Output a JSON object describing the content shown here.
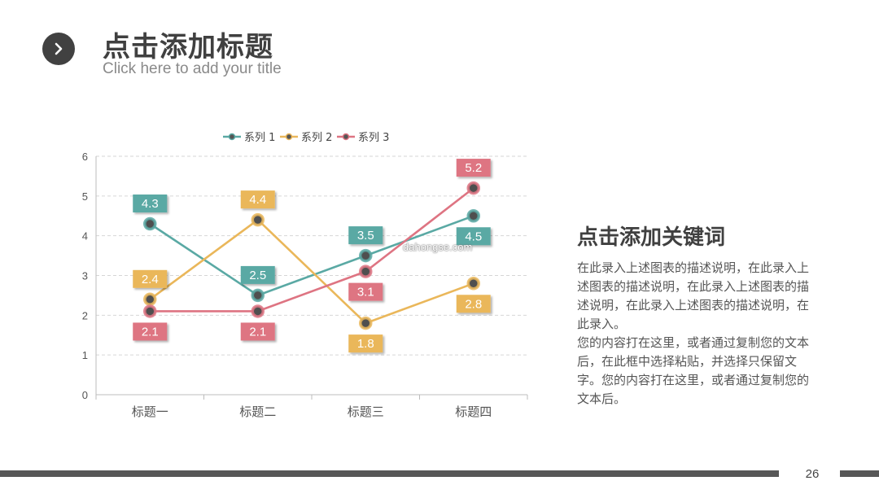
{
  "header": {
    "title": "点击添加标题",
    "subtitle": "Click here to add your title",
    "nav_icon": "chevron-right-icon"
  },
  "keywords": {
    "title": "点击添加关键词",
    "paragraphs": [
      "在此录入上述图表的描述说明，在此录入上述图表的描述说明，在此录入上述图表的描述说明，在此录入上述图表的描述说明，在此录入。",
      "您的内容打在这里，或者通过复制您的文本后，在此框中选择粘贴，并选择只保留文字。您的内容打在这里，或者通过复制您的文本后。"
    ]
  },
  "watermark": "dahongse.com",
  "footer": {
    "page_number": "26"
  },
  "chart_data": {
    "type": "line",
    "categories": [
      "标题一",
      "标题二",
      "标题三",
      "标题四"
    ],
    "series": [
      {
        "name": "系列 1",
        "values": [
          4.3,
          2.5,
          3.5,
          4.5
        ],
        "color": "#5aa9a4"
      },
      {
        "name": "系列 2",
        "values": [
          2.4,
          4.4,
          1.8,
          2.8
        ],
        "color": "#eab75a"
      },
      {
        "name": "系列 3",
        "values": [
          2.1,
          2.1,
          3.1,
          5.2
        ],
        "color": "#de7482"
      }
    ],
    "ylim": [
      0,
      6
    ],
    "yticks": [
      0,
      1,
      2,
      3,
      4,
      5,
      6
    ],
    "grid": true,
    "legend": "top",
    "data_labels": true
  }
}
